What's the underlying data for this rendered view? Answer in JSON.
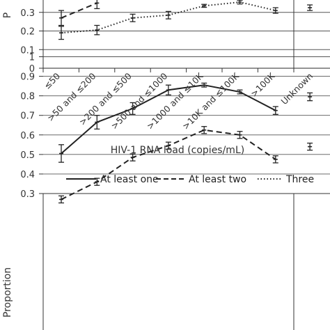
{
  "chart_data": [
    {
      "type": "line",
      "categories": [
        "≤50",
        ">50 and ≤200",
        ">200 and ≤500",
        ">500 and ≤1000",
        ">1000 and ≤10K",
        ">10K and ≤100K",
        ">100K",
        "Unknown"
      ],
      "xlabel": "HIV-1 RNA load (copies/mL)",
      "ylabel": "P",
      "ylim": [
        0,
        0.4
      ],
      "yticks": [
        0,
        0.1,
        0.2,
        0.3
      ],
      "grid": true,
      "series": [
        {
          "style": "dashed",
          "values": [
            0.27,
            0.35,
            null,
            null,
            null,
            null,
            null,
            null
          ],
          "errors": [
            0.04,
            0.03,
            null,
            null,
            null,
            null,
            null,
            null
          ]
        },
        {
          "style": "dotted",
          "values": [
            0.19,
            0.205,
            0.27,
            0.285,
            0.335,
            0.355,
            0.31,
            0.325
          ],
          "errors": [
            0.035,
            0.025,
            0.02,
            0.02,
            0.008,
            0.01,
            0.015,
            0.015
          ]
        }
      ]
    },
    {
      "type": "line",
      "legend": {
        "position": "top",
        "entries": [
          {
            "label": "At least one",
            "style": "solid"
          },
          {
            "label": "At least two",
            "style": "dashed"
          },
          {
            "label": "Three",
            "style": "dotted"
          }
        ]
      },
      "ylabel": "Proportion",
      "ylim": [
        0.3,
        1
      ],
      "yticks": [
        0.3,
        0.4,
        0.5,
        0.6,
        0.7,
        0.8,
        0.9,
        1
      ],
      "grid": true,
      "series": [
        {
          "name": "At least one",
          "style": "solid",
          "values": [
            0.505,
            0.665,
            0.735,
            0.83,
            0.855,
            0.82,
            0.725,
            0.795
          ],
          "errors": [
            0.045,
            0.035,
            0.03,
            0.025,
            0.01,
            0.01,
            0.02,
            0.02
          ]
        },
        {
          "name": "At least two",
          "style": "dashed",
          "values": [
            0.27,
            0.36,
            0.485,
            0.545,
            0.625,
            0.6,
            0.475,
            0.54
          ]
        }
      ]
    }
  ],
  "colors": {
    "line": "#222222",
    "grid": "#555555",
    "axis": "#333333",
    "background": "#ffffff"
  }
}
